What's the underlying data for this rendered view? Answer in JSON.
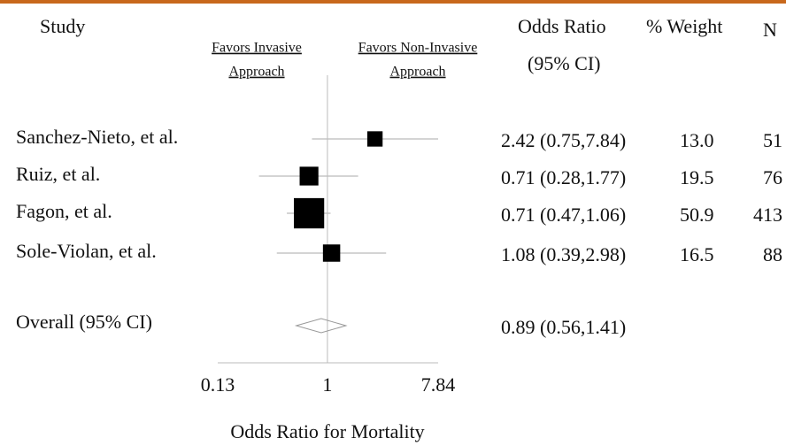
{
  "chart_data": {
    "type": "forest",
    "study_header": "Study",
    "favors_left": [
      "Favors Invasive",
      "Approach"
    ],
    "favors_right": [
      "Favors Non-Invasive",
      "Approach"
    ],
    "or_header": [
      "Odds Ratio",
      "(95% CI)"
    ],
    "weight_header": "% Weight",
    "n_header": "N",
    "studies": [
      "Sanchez-Nieto, et al.",
      "Ruiz, et al.",
      "Fagon, et al.",
      "Sole-Violan, et al."
    ],
    "odds_ratio": [
      2.42,
      0.71,
      0.71,
      1.08
    ],
    "ci_low": [
      0.75,
      0.28,
      0.47,
      0.39
    ],
    "ci_high": [
      7.84,
      1.77,
      1.06,
      2.98
    ],
    "ci_labels": [
      "2.42 (0.75,7.84)",
      "0.71 (0.28,1.77)",
      "0.71 (0.47,1.06)",
      "1.08 (0.39,2.98)"
    ],
    "weights": [
      13.0,
      19.5,
      50.9,
      16.5
    ],
    "weight_labels": [
      "13.0",
      "19.5",
      "50.9",
      "16.5"
    ],
    "n": [
      51,
      76,
      413,
      88
    ],
    "overall": {
      "name": "Overall (95% CI)",
      "odds_ratio": 0.89,
      "ci_low": 0.56,
      "ci_high": 1.41,
      "label": "0.89 (0.56,1.41)"
    },
    "xlim": [
      0.13,
      7.84
    ],
    "xticks": [
      0.13,
      1,
      7.84
    ],
    "log_x": true,
    "x_label": "Odds Ratio for Mortality",
    "color": "#000000"
  }
}
